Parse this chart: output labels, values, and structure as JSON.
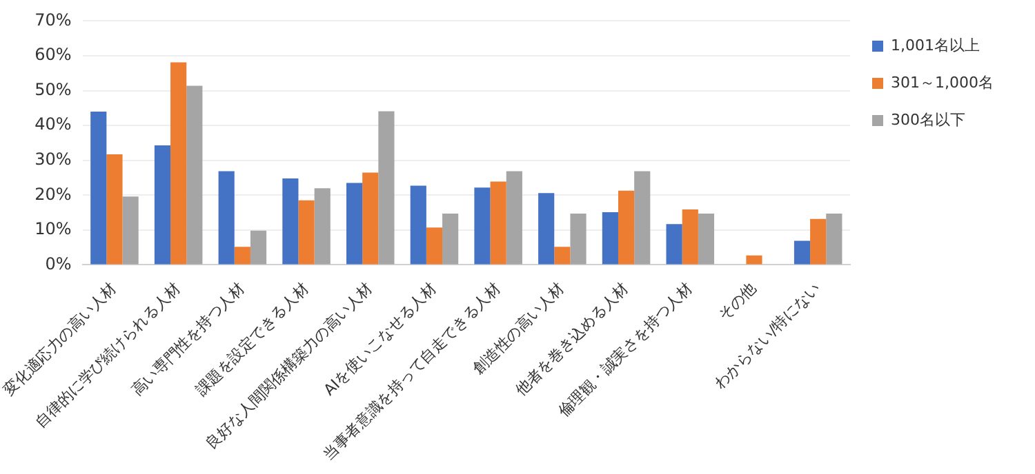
{
  "chart_data": {
    "type": "bar",
    "categories": [
      "変化適応力の高い人材",
      "自律的に学び続けられる人材",
      "高い専門性を持つ人材",
      "課題を設定できる人材",
      "良好な人間関係構築力の高い人材",
      "AIを使いこなせる人材",
      "当事者意識を持って自走できる人材",
      "創造性の高い人材",
      "他者を巻き込める人材",
      "倫理観・誠実さを持つ人材",
      "その他",
      "わからない/特にない"
    ],
    "series": [
      {
        "name": "1,001名以上",
        "color": "#4472c4",
        "values": [
          44,
          34.3,
          26.9,
          24.8,
          23.5,
          22.7,
          22.2,
          20.6,
          15.1,
          11.7,
          0,
          6.9
        ]
      },
      {
        "name": "301～1,000名",
        "color": "#ed7d31",
        "values": [
          31.7,
          58.1,
          5.2,
          18.5,
          26.5,
          10.7,
          23.9,
          5.2,
          21.3,
          15.9,
          2.7,
          13.2
        ]
      },
      {
        "name": "300名以下",
        "color": "#a5a5a5",
        "values": [
          19.6,
          51.4,
          9.8,
          22,
          44.1,
          14.7,
          26.9,
          14.7,
          26.9,
          14.7,
          0,
          14.7
        ]
      }
    ],
    "ylim": [
      0,
      70
    ],
    "yticks": [
      {
        "value": 0,
        "label": "0%"
      },
      {
        "value": 10,
        "label": "10%"
      },
      {
        "value": 20,
        "label": "20%"
      },
      {
        "value": 30,
        "label": "30%"
      },
      {
        "value": 40,
        "label": "40%"
      },
      {
        "value": 50,
        "label": "50%"
      },
      {
        "value": 60,
        "label": "60%"
      },
      {
        "value": 70,
        "label": "70%"
      }
    ],
    "grid": "y",
    "legend": "top right"
  }
}
